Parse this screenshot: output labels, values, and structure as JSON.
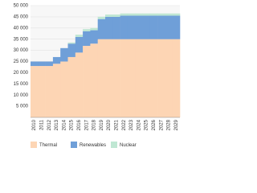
{
  "chart_data": {
    "type": "stacked-area-step",
    "categories": [
      "2010",
      "2011",
      "2012",
      "2013",
      "2014",
      "2015",
      "2016",
      "2017",
      "2018",
      "2019",
      "2020",
      "2021",
      "2022",
      "2023",
      "2024",
      "2025",
      "2026",
      "2027",
      "2028",
      "2029"
    ],
    "series": [
      {
        "name": "Thermal",
        "color": "#fdd5b4",
        "values": [
          23000,
          23000,
          23000,
          24000,
          25000,
          27000,
          29000,
          32000,
          33000,
          35000,
          35000,
          35000,
          35000,
          35000,
          35000,
          35000,
          35000,
          35000,
          35000,
          35000
        ]
      },
      {
        "name": "Renewables",
        "color": "#6f9fd8",
        "values": [
          2000,
          2000,
          2000,
          3000,
          6000,
          6000,
          7000,
          6500,
          6000,
          9000,
          10000,
          10000,
          10500,
          10500,
          10500,
          10500,
          10500,
          10500,
          10500,
          10500
        ]
      },
      {
        "name": "Nuclear",
        "color": "#bfe7d3",
        "values": [
          0,
          0,
          0,
          0,
          0,
          500,
          1000,
          1000,
          1000,
          1000,
          1000,
          1000,
          1000,
          1000,
          1000,
          1000,
          1000,
          1000,
          1000,
          1000
        ]
      }
    ],
    "ylim": [
      0,
      50000
    ],
    "yticks": [
      {
        "value": 5000,
        "label": "5 000"
      },
      {
        "value": 10000,
        "label": "10 000"
      },
      {
        "value": 15000,
        "label": "15 000"
      },
      {
        "value": 20000,
        "label": "20 000"
      },
      {
        "value": 25000,
        "label": "25 000"
      },
      {
        "value": 30000,
        "label": "30 000"
      },
      {
        "value": 35000,
        "label": "35 000"
      },
      {
        "value": 40000,
        "label": "40 000"
      },
      {
        "value": 45000,
        "label": "45 000"
      },
      {
        "value": 50000,
        "label": "50 000"
      }
    ],
    "grid": true
  }
}
